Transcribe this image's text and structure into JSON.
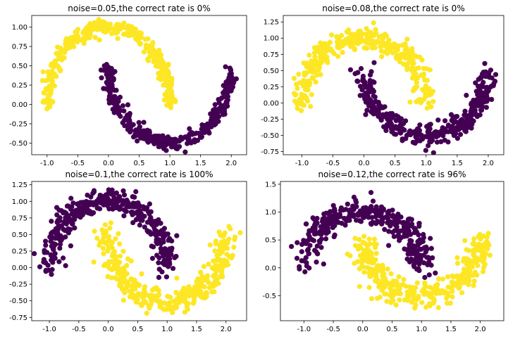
{
  "chart_data": [
    {
      "type": "scatter",
      "title": "noise=0.05,the correct rate is 0%",
      "xlim": [
        -1.25,
        2.25
      ],
      "ylim": [
        -0.65,
        1.15
      ],
      "xticks": [
        -1.0,
        -0.5,
        0.0,
        0.5,
        1.0,
        1.5,
        2.0
      ],
      "xtick_labels": [
        "-1.0",
        "-0.5",
        "0.0",
        "0.5",
        "1.0",
        "1.5",
        "2.0"
      ],
      "yticks": [
        -0.5,
        -0.25,
        0.0,
        0.25,
        0.5,
        0.75,
        1.0
      ],
      "ytick_labels": [
        "-0.50",
        "-0.25",
        "0.00",
        "0.25",
        "0.50",
        "0.75",
        "1.00"
      ],
      "noise": 0.05,
      "series": [
        {
          "color": "#fde725",
          "shape": "upper-moon"
        },
        {
          "color": "#440154",
          "shape": "lower-moon"
        }
      ]
    },
    {
      "type": "scatter",
      "title": "noise=0.08,the correct rate is 0%",
      "xlim": [
        -1.3,
        2.25
      ],
      "ylim": [
        -0.8,
        1.35
      ],
      "xticks": [
        -1.0,
        -0.5,
        0.0,
        0.5,
        1.0,
        1.5,
        2.0
      ],
      "xtick_labels": [
        "-1.0",
        "-0.5",
        "0.0",
        "0.5",
        "1.0",
        "1.5",
        "2.0"
      ],
      "yticks": [
        -0.75,
        -0.5,
        -0.25,
        0.0,
        0.25,
        0.5,
        0.75,
        1.0,
        1.25
      ],
      "ytick_labels": [
        "-0.75",
        "-0.50",
        "-0.25",
        "0.00",
        "0.25",
        "0.50",
        "0.75",
        "1.00",
        "1.25"
      ],
      "noise": 0.08,
      "series": [
        {
          "color": "#fde725",
          "shape": "upper-moon"
        },
        {
          "color": "#440154",
          "shape": "lower-moon"
        }
      ]
    },
    {
      "type": "scatter",
      "title": "noise=0.1,the correct rate is 100%",
      "xlim": [
        -1.3,
        2.35
      ],
      "ylim": [
        -0.8,
        1.3
      ],
      "xticks": [
        -1.0,
        -0.5,
        0.0,
        0.5,
        1.0,
        1.5,
        2.0
      ],
      "xtick_labels": [
        "-1.0",
        "-0.5",
        "0.0",
        "0.5",
        "1.0",
        "1.5",
        "2.0"
      ],
      "yticks": [
        -0.75,
        -0.5,
        -0.25,
        0.0,
        0.25,
        0.5,
        0.75,
        1.0,
        1.25
      ],
      "ytick_labels": [
        "-0.75",
        "-0.50",
        "-0.25",
        "0.00",
        "0.25",
        "0.50",
        "0.75",
        "1.00",
        "1.25"
      ],
      "noise": 0.1,
      "series": [
        {
          "color": "#440154",
          "shape": "upper-moon"
        },
        {
          "color": "#fde725",
          "shape": "lower-moon"
        }
      ]
    },
    {
      "type": "scatter",
      "title": "noise=0.12,the correct rate is 96%",
      "xlim": [
        -1.4,
        2.4
      ],
      "ylim": [
        -0.95,
        1.55
      ],
      "xticks": [
        -1.0,
        -0.5,
        0.0,
        0.5,
        1.0,
        1.5,
        2.0
      ],
      "xtick_labels": [
        "-1.0",
        "-0.5",
        "0.0",
        "0.5",
        "1.0",
        "1.5",
        "2.0"
      ],
      "yticks": [
        -0.5,
        0.0,
        0.5,
        1.0,
        1.5
      ],
      "ytick_labels": [
        "-0.5",
        "0.0",
        "0.5",
        "1.0",
        "1.5"
      ],
      "noise": 0.12,
      "series": [
        {
          "color": "#440154",
          "shape": "upper-moon"
        },
        {
          "color": "#fde725",
          "shape": "lower-moon"
        }
      ]
    }
  ]
}
